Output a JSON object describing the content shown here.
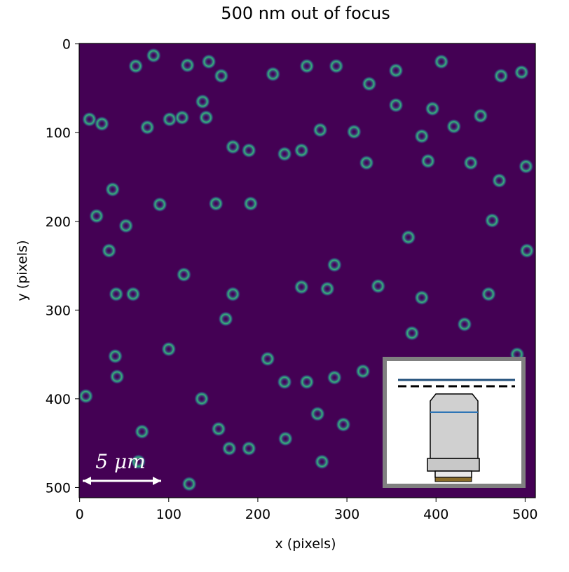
{
  "chart_data": {
    "type": "image",
    "title": "500 nm out of focus",
    "x_label": "x (pixels)",
    "y_label": "y (pixels)",
    "background": "#440154",
    "xlim": [
      -0.5,
      511.5
    ],
    "ylim": [
      511.5,
      -0.5
    ],
    "xticks": [
      0,
      100,
      200,
      300,
      400,
      500
    ],
    "yticks": [
      0,
      100,
      200,
      300,
      400,
      500
    ],
    "scale_bar_label": "5 μm",
    "series": [
      {
        "name": "spots",
        "color": "#35b779",
        "x": [
          63,
          83,
          121,
          145,
          159,
          217,
          255,
          288,
          355,
          325,
          406,
          473,
          496,
          11,
          25,
          76,
          101,
          115,
          142,
          138,
          172,
          190,
          230,
          249,
          270,
          308,
          322,
          355,
          384,
          391,
          396,
          420,
          450,
          439,
          471,
          501,
          502,
          463,
          19,
          52,
          37,
          33,
          41,
          60,
          90,
          117,
          153,
          192,
          172,
          164,
          249,
          278,
          286,
          335,
          369,
          373,
          384,
          432,
          459,
          491,
          40,
          42,
          7,
          70,
          100,
          137,
          211,
          230,
          255,
          286,
          318,
          231,
          168,
          190,
          156,
          296,
          123,
          66,
          267,
          272
        ],
        "values": [
          25,
          13,
          24,
          20,
          36,
          34,
          25,
          25,
          30,
          45,
          20,
          36,
          32,
          85,
          90,
          94,
          85,
          83,
          83,
          65,
          116,
          120,
          124,
          120,
          97,
          99,
          134,
          69,
          104,
          132,
          73,
          93,
          81,
          134,
          154,
          138,
          233,
          199,
          194,
          205,
          164,
          233,
          282,
          282,
          181,
          260,
          180,
          180,
          282,
          310,
          274,
          276,
          249,
          273,
          218,
          326,
          286,
          316,
          282,
          350,
          352,
          375,
          397,
          437,
          344,
          400,
          355,
          381,
          381,
          376,
          369,
          445,
          456,
          456,
          434,
          429,
          496,
          471,
          417,
          471
        ]
      }
    ]
  }
}
